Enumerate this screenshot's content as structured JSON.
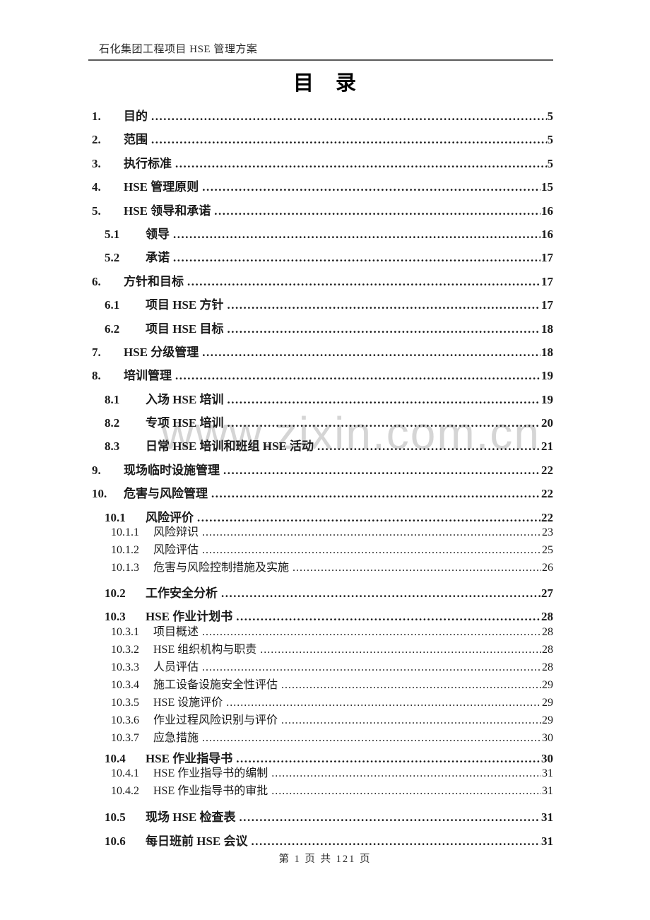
{
  "page": {
    "header": "石化集团工程项目 HSE 管理方案",
    "title": "目　录",
    "watermark": "www.zixin.com.cn",
    "footer": "第 1 页 共 121 页"
  },
  "colors": {
    "text": "#1a1a1a",
    "rule": "#5a5a5a",
    "watermark": "#d5d5d5"
  },
  "toc": {
    "entries": [
      {
        "num": "1.",
        "label": "目的",
        "page": "5",
        "level": 1
      },
      {
        "num": "2.",
        "label": "范围",
        "page": "5",
        "level": 1
      },
      {
        "num": "3.",
        "label": "执行标准",
        "page": "5",
        "level": 1
      },
      {
        "num": "4.",
        "label": "HSE 管理原则",
        "page": "15",
        "level": 1
      },
      {
        "num": "5.",
        "label": "HSE 领导和承诺",
        "page": "16",
        "level": 1
      },
      {
        "num": "5.1",
        "label": "领导",
        "page": "16",
        "level": 2
      },
      {
        "num": "5.2",
        "label": "承诺",
        "page": "17",
        "level": 2
      },
      {
        "num": "6.",
        "label": "方针和目标",
        "page": "17",
        "level": 1
      },
      {
        "num": "6.1",
        "label": "项目 HSE 方针",
        "page": "17",
        "level": 2
      },
      {
        "num": "6.2",
        "label": "项目 HSE 目标",
        "page": "18",
        "level": 2
      },
      {
        "num": "7.",
        "label": "HSE 分级管理",
        "page": "18",
        "level": 1
      },
      {
        "num": "8.",
        "label": "培训管理",
        "page": "19",
        "level": 1
      },
      {
        "num": "8.1",
        "label": "入场 HSE 培训",
        "page": "19",
        "level": 2
      },
      {
        "num": "8.2",
        "label": "专项 HSE 培训",
        "page": "20",
        "level": 2
      },
      {
        "num": "8.3",
        "label": "日常 HSE 培训和班组 HSE 活动",
        "page": "21",
        "level": 2
      },
      {
        "num": "9.",
        "label": "现场临时设施管理",
        "page": "22",
        "level": 1
      },
      {
        "num": "10.",
        "label": "危害与风险管理",
        "page": "22",
        "level": 1
      },
      {
        "num": "10.1",
        "label": "风险评价",
        "page": "22",
        "level": 2
      },
      {
        "num": "10.1.1",
        "label": "风险辩识",
        "page": "23",
        "level": 3,
        "firstSub": true
      },
      {
        "num": "10.1.2",
        "label": "风险评估",
        "page": "25",
        "level": 3
      },
      {
        "num": "10.1.3",
        "label": "危害与风险控制措施及实施",
        "page": "26",
        "level": 3
      },
      {
        "num": "10.2",
        "label": "工作安全分析",
        "page": "27",
        "level": 2,
        "gapBefore": 7
      },
      {
        "num": "10.3",
        "label": "HSE 作业计划书",
        "page": "28",
        "level": 2
      },
      {
        "num": "10.3.1",
        "label": "项目概述",
        "page": "28",
        "level": 3,
        "firstSub": true
      },
      {
        "num": "10.3.2",
        "label": "HSE 组织机构与职责",
        "page": "28",
        "level": 3
      },
      {
        "num": "10.3.3",
        "label": "人员评估",
        "page": "28",
        "level": 3
      },
      {
        "num": "10.3.4",
        "label": "施工设备设施安全性评估",
        "page": "29",
        "level": 3
      },
      {
        "num": "10.3.5",
        "label": "HSE 设施评价",
        "page": "29",
        "level": 3
      },
      {
        "num": "10.3.6",
        "label": "作业过程风险识别与评价",
        "page": "29",
        "level": 3
      },
      {
        "num": "10.3.7",
        "label": "应急措施",
        "page": "30",
        "level": 3
      },
      {
        "num": "10.4",
        "label": "HSE 作业指导书",
        "page": "30",
        "level": 2
      },
      {
        "num": "10.4.1",
        "label": "HSE 作业指导书的编制",
        "page": "31",
        "level": 3,
        "firstSub": true
      },
      {
        "num": "10.4.2",
        "label": "HSE 作业指导书的审批",
        "page": "31",
        "level": 3
      },
      {
        "num": "10.5",
        "label": "现场 HSE 检查表",
        "page": "31",
        "level": 2,
        "gapBefore": 8
      },
      {
        "num": "10.6",
        "label": "每日班前 HSE 会议",
        "page": "31",
        "level": 2
      }
    ]
  }
}
